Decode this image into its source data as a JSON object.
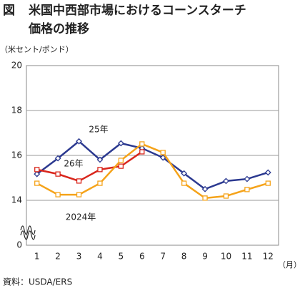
{
  "chart_data": {
    "type": "line",
    "figure_label": "図",
    "title": [
      "米国中西部市場におけるコーンスターチ",
      "価格の推移"
    ],
    "y_unit": "（米セント/ポンド）",
    "x_unit": "（月）",
    "source": "資料：USDA/ERS",
    "x": [
      1,
      2,
      3,
      4,
      5,
      6,
      7,
      8,
      9,
      10,
      11,
      12
    ],
    "xlim": [
      0.5,
      12.5
    ],
    "ylim": [
      12,
      20
    ],
    "yticks": [
      14,
      16,
      18,
      20
    ],
    "y_break_label": 0,
    "grid": true,
    "series": [
      {
        "name": "25年",
        "color": "#2b3990",
        "marker": "diamond",
        "values": [
          15.17,
          15.87,
          16.63,
          15.81,
          16.54,
          16.32,
          15.9,
          15.2,
          14.5,
          14.86,
          14.95,
          15.24
        ]
      },
      {
        "name": "26年",
        "color": "#d9261c",
        "marker": "square",
        "values": [
          15.37,
          15.17,
          14.86,
          15.37,
          15.52,
          16.16,
          null,
          null,
          null,
          null,
          null,
          null
        ]
      },
      {
        "name": "2024年",
        "color": "#f5a31a",
        "marker": "square",
        "values": [
          14.76,
          14.25,
          14.25,
          14.76,
          15.78,
          16.51,
          16.13,
          14.76,
          14.1,
          14.19,
          14.48,
          14.76
        ]
      }
    ]
  }
}
